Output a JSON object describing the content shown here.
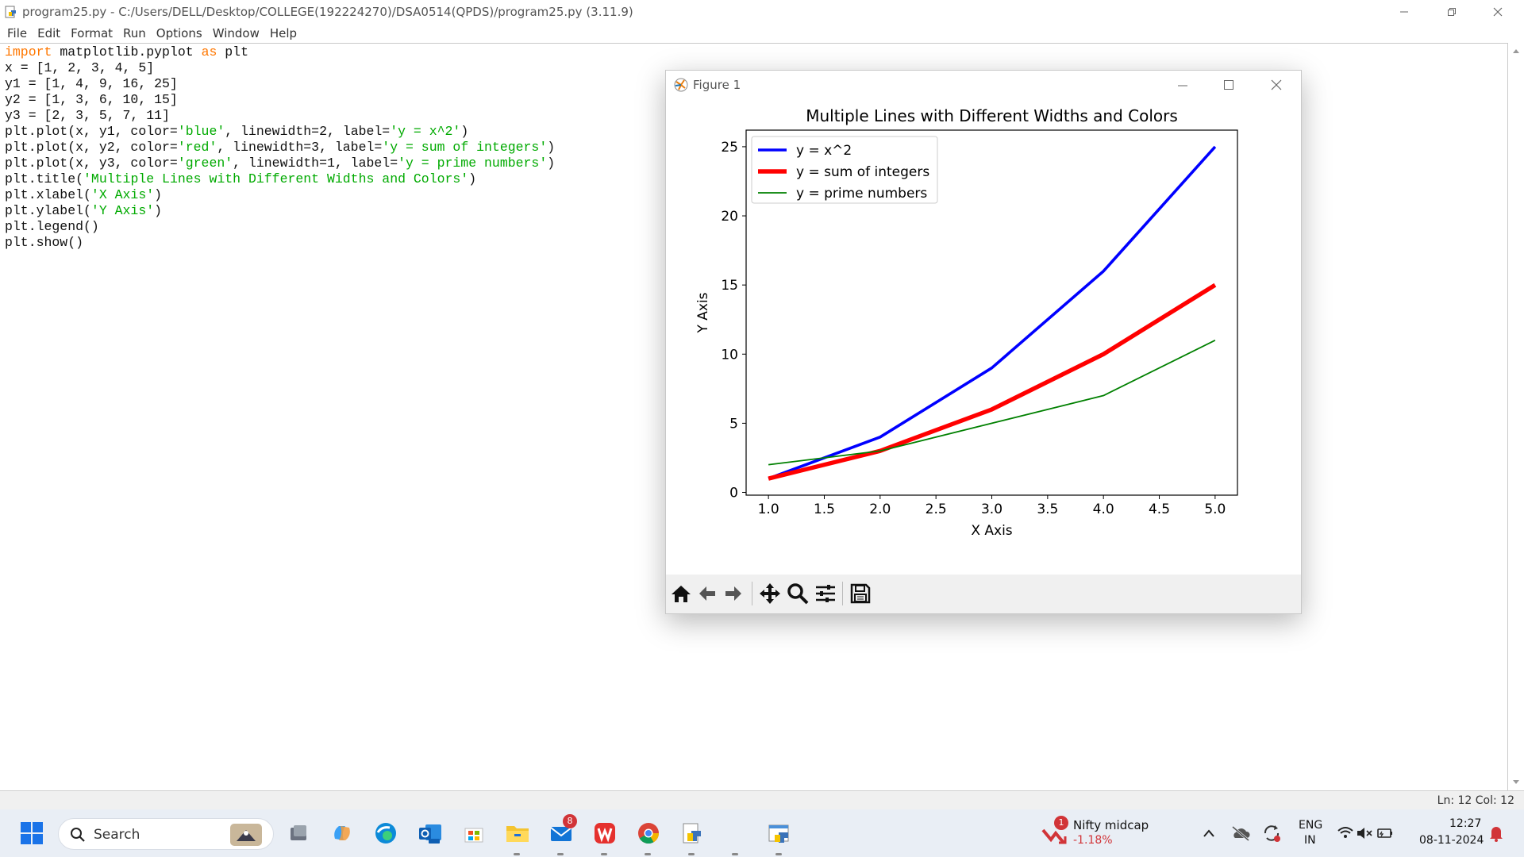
{
  "window": {
    "title": "program25.py - C:/Users/DELL/Desktop/COLLEGE(192224270)/DSA0514(QPDS)/program25.py (3.11.9)"
  },
  "menu": [
    "File",
    "Edit",
    "Format",
    "Run",
    "Options",
    "Window",
    "Help"
  ],
  "code_lines": [
    [
      {
        "t": "import",
        "c": "kw"
      },
      {
        "t": " matplotlib.pyplot "
      },
      {
        "t": "as",
        "c": "kw"
      },
      {
        "t": " plt"
      }
    ],
    [
      {
        "t": "x = [1, 2, 3, 4, 5]"
      }
    ],
    [
      {
        "t": "y1 = [1, 4, 9, 16, 25]"
      }
    ],
    [
      {
        "t": "y2 = [1, 3, 6, 10, 15]"
      }
    ],
    [
      {
        "t": "y3 = [2, 3, 5, 7, 11]"
      }
    ],
    [
      {
        "t": "plt.plot(x, y1, color="
      },
      {
        "t": "'blue'",
        "c": "str"
      },
      {
        "t": ", linewidth=2, label="
      },
      {
        "t": "'y = x^2'",
        "c": "str"
      },
      {
        "t": ")"
      }
    ],
    [
      {
        "t": "plt.plot(x, y2, color="
      },
      {
        "t": "'red'",
        "c": "str"
      },
      {
        "t": ", linewidth=3, label="
      },
      {
        "t": "'y = sum of integers'",
        "c": "str"
      },
      {
        "t": ")"
      }
    ],
    [
      {
        "t": "plt.plot(x, y3, color="
      },
      {
        "t": "'green'",
        "c": "str"
      },
      {
        "t": ", linewidth=1, label="
      },
      {
        "t": "'y = prime numbers'",
        "c": "str"
      },
      {
        "t": ")"
      }
    ],
    [
      {
        "t": "plt.title("
      },
      {
        "t": "'Multiple Lines with Different Widths and Colors'",
        "c": "str"
      },
      {
        "t": ")"
      }
    ],
    [
      {
        "t": "plt.xlabel("
      },
      {
        "t": "'X Axis'",
        "c": "str"
      },
      {
        "t": ")"
      }
    ],
    [
      {
        "t": "plt.ylabel("
      },
      {
        "t": "'Y Axis'",
        "c": "str"
      },
      {
        "t": ")"
      }
    ],
    [
      {
        "t": "plt.legend()"
      }
    ],
    [
      {
        "t": "plt.show()"
      }
    ]
  ],
  "status": {
    "position": "Ln: 12   Col: 12"
  },
  "figure": {
    "title": "Figure 1"
  },
  "chart_data": {
    "type": "line",
    "title": "Multiple Lines with Different Widths and Colors",
    "xlabel": "X Axis",
    "ylabel": "Y Axis",
    "x": [
      1,
      2,
      3,
      4,
      5
    ],
    "xlim": [
      0.8,
      5.2
    ],
    "ylim": [
      -0.2,
      26.2
    ],
    "xticks": [
      "1.0",
      "1.5",
      "2.0",
      "2.5",
      "3.0",
      "3.5",
      "4.0",
      "4.5",
      "5.0"
    ],
    "yticks": [
      "0",
      "5",
      "10",
      "15",
      "20",
      "25"
    ],
    "legend_position": "top-left",
    "series": [
      {
        "name": "y = x^2",
        "values": [
          1,
          4,
          9,
          16,
          25
        ],
        "color": "#0000ff",
        "linewidth": 2
      },
      {
        "name": "y = sum of integers",
        "values": [
          1,
          3,
          6,
          10,
          15
        ],
        "color": "#ff0000",
        "linewidth": 3
      },
      {
        "name": "y = prime numbers",
        "values": [
          2,
          3,
          5,
          7,
          11
        ],
        "color": "#008000",
        "linewidth": 1
      }
    ]
  },
  "taskbar": {
    "search_label": "Search",
    "badge_mail": "8",
    "widget_badge": "1",
    "widget_title": "Nifty midcap",
    "widget_value": "-1.18%",
    "lang1": "ENG",
    "lang2": "IN",
    "time": "12:27",
    "date": "08-11-2024"
  },
  "colors": {
    "keyword": "#ff7700",
    "string": "#00aa00",
    "negative": "#d13438"
  }
}
